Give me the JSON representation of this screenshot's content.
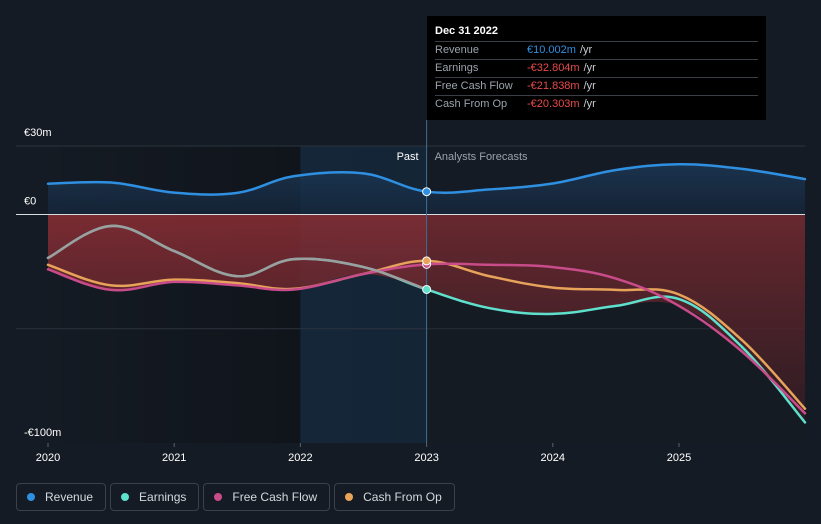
{
  "tooltip": {
    "date": "Dec 31 2022",
    "rows": [
      {
        "label": "Revenue",
        "value": "€10.002m",
        "unit": "/yr",
        "color": "#2f8fe0"
      },
      {
        "label": "Earnings",
        "value": "-€32.804m",
        "unit": "/yr",
        "color": "#e84a4a"
      },
      {
        "label": "Free Cash Flow",
        "value": "-€21.838m",
        "unit": "/yr",
        "color": "#e84a4a"
      },
      {
        "label": "Cash From Op",
        "value": "-€20.303m",
        "unit": "/yr",
        "color": "#e84a4a"
      }
    ]
  },
  "legend": [
    {
      "label": "Revenue",
      "color": "#2f8fe0"
    },
    {
      "label": "Earnings",
      "color": "#5ee0cc"
    },
    {
      "label": "Free Cash Flow",
      "color": "#c84b8a"
    },
    {
      "label": "Cash From Op",
      "color": "#e8a35a"
    }
  ],
  "chart_data": {
    "type": "line",
    "title": "",
    "xlabel": "",
    "ylabel": "",
    "ylim": [
      -100,
      30
    ],
    "xlim": [
      2019.9,
      2025.98
    ],
    "divider_x": 2023.0,
    "past_label": "Past",
    "forecast_label": "Analysts Forecasts",
    "x_ticks": [
      {
        "value": 2020.0,
        "label": "2020"
      },
      {
        "value": 2021.0,
        "label": "2021"
      },
      {
        "value": 2022.0,
        "label": "2022"
      },
      {
        "value": 2023.0,
        "label": "2023"
      },
      {
        "value": 2024.0,
        "label": "2024"
      },
      {
        "value": 2025.0,
        "label": "2025"
      }
    ],
    "y_ticks": [
      {
        "value": 30,
        "label": "€30m"
      },
      {
        "value": 0,
        "label": "€0"
      },
      {
        "value": -100,
        "label": "-€100m"
      }
    ],
    "series": [
      {
        "name": "Revenue",
        "color": "#2f8fe0",
        "x": [
          2020.0,
          2020.5,
          2021.0,
          2021.5,
          2021.95,
          2022.5,
          2023.0,
          2023.5,
          2024.0,
          2024.5,
          2025.0,
          2025.5,
          2026.0
        ],
        "y": [
          13.5,
          14.0,
          9.6,
          9.5,
          16.8,
          18.0,
          10.0,
          11.0,
          13.6,
          19.5,
          22.0,
          20.0,
          15.5
        ]
      },
      {
        "name": "Earnings",
        "color": "#5ee0cc",
        "x": [
          2020.0,
          2020.5,
          2021.0,
          2021.5,
          2021.95,
          2022.5,
          2023.0,
          2023.5,
          2024.0,
          2024.5,
          2025.0,
          2025.5,
          2026.0
        ],
        "y": [
          -19.0,
          -5.0,
          -16.0,
          -27.0,
          -19.5,
          -23.0,
          -32.8,
          -41.0,
          -43.5,
          -40.0,
          -37.0,
          -58.0,
          -91.0
        ]
      },
      {
        "name": "Free Cash Flow",
        "color": "#c84b8a",
        "x": [
          2020.0,
          2020.5,
          2021.0,
          2021.5,
          2021.95,
          2022.5,
          2023.0,
          2023.5,
          2024.0,
          2024.5,
          2025.0,
          2025.5,
          2026.0
        ],
        "y": [
          -24.0,
          -33.0,
          -29.5,
          -31.0,
          -32.8,
          -26.0,
          -21.8,
          -22.0,
          -23.0,
          -28.0,
          -40.0,
          -60.0,
          -87.0
        ]
      },
      {
        "name": "Cash From Op",
        "color": "#e8a35a",
        "x": [
          2020.0,
          2020.5,
          2021.0,
          2021.5,
          2021.95,
          2022.5,
          2023.0,
          2023.5,
          2024.0,
          2024.5,
          2025.0,
          2025.5,
          2026.0
        ],
        "y": [
          -22.0,
          -31.0,
          -28.5,
          -30.0,
          -32.5,
          -26.0,
          -20.3,
          -27.0,
          -32.0,
          -33.0,
          -35.0,
          -55.0,
          -85.0
        ]
      }
    ]
  }
}
